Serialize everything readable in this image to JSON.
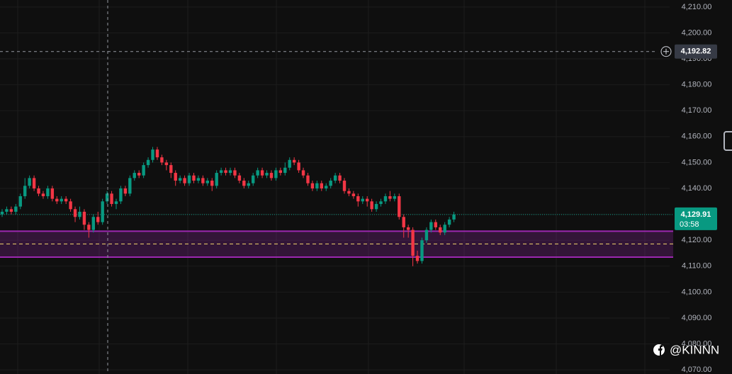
{
  "chart_data": {
    "type": "candlestick",
    "open": [
      4130,
      4131,
      4132,
      4131,
      4133,
      4137,
      4141,
      4144,
      4140,
      4138,
      4137,
      4140,
      4136,
      4135,
      4136,
      4135,
      4132,
      4129,
      4131,
      4126,
      4124,
      4129,
      4127,
      4135,
      4138,
      4134,
      4135,
      4140,
      4138,
      4144,
      4146,
      4145,
      4149,
      4151,
      4155,
      4152,
      4150,
      4149,
      4146,
      4143,
      4144,
      4142,
      4145,
      4143,
      4144,
      4142,
      4143,
      4141,
      4146,
      4147,
      4146,
      4147,
      4145,
      4143,
      4141,
      4142,
      4145,
      4147,
      4145,
      4146,
      4144,
      4147,
      4146,
      4148,
      4151,
      4150,
      4147,
      4145,
      4142,
      4140,
      4142,
      4140,
      4141,
      4143,
      4145,
      4143,
      4139,
      4138,
      4137,
      4135,
      4136,
      4135,
      4132,
      4134,
      4135,
      4137,
      4136,
      4137,
      4129,
      4125,
      4124,
      4114,
      4112,
      4120,
      4124,
      4127,
      4125,
      4123,
      4126,
      4128
    ],
    "high": [
      4132,
      4133,
      4133,
      4134,
      4138,
      4144,
      4145,
      4145,
      4141,
      4139,
      4141,
      4141,
      4137,
      4137,
      4137,
      4136,
      4133,
      4133,
      4132,
      4127,
      4130,
      4131,
      4136,
      4139,
      4139,
      4136,
      4141,
      4141,
      4145,
      4147,
      4147,
      4150,
      4152,
      4156,
      4156,
      4153,
      4151,
      4150,
      4147,
      4145,
      4145,
      4146,
      4146,
      4145,
      4145,
      4144,
      4144,
      4147,
      4148,
      4148,
      4148,
      4148,
      4146,
      4144,
      4143,
      4146,
      4148,
      4148,
      4147,
      4147,
      4148,
      4148,
      4150,
      4152,
      4152,
      4151,
      4148,
      4146,
      4143,
      4143,
      4143,
      4142,
      4144,
      4146,
      4146,
      4144,
      4140,
      4139,
      4138,
      4137,
      4137,
      4136,
      4135,
      4136,
      4138,
      4139,
      4138,
      4138,
      4130,
      4126,
      4125,
      4116,
      4121,
      4125,
      4128,
      4128,
      4126,
      4127,
      4129,
      4131
    ],
    "low": [
      4129,
      4130,
      4130,
      4130,
      4132,
      4136,
      4140,
      4139,
      4137,
      4136,
      4136,
      4135,
      4134,
      4134,
      4134,
      4131,
      4127,
      4128,
      4124,
      4121,
      4123,
      4126,
      4126,
      4134,
      4133,
      4132,
      4134,
      4137,
      4137,
      4143,
      4144,
      4144,
      4148,
      4150,
      4151,
      4149,
      4147,
      4144,
      4141,
      4142,
      4141,
      4141,
      4142,
      4142,
      4141,
      4141,
      4139,
      4140,
      4145,
      4145,
      4145,
      4144,
      4142,
      4140,
      4140,
      4141,
      4144,
      4144,
      4144,
      4143,
      4143,
      4145,
      4145,
      4147,
      4149,
      4146,
      4144,
      4141,
      4139,
      4139,
      4139,
      4139,
      4140,
      4142,
      4142,
      4138,
      4137,
      4136,
      4133,
      4134,
      4133,
      4131,
      4131,
      4133,
      4134,
      4135,
      4135,
      4128,
      4121,
      4121,
      4110,
      4111,
      4111,
      4119,
      4123,
      4124,
      4122,
      4122,
      4125,
      4127
    ],
    "close": [
      4131,
      4132,
      4131,
      4133,
      4137,
      4141,
      4144,
      4140,
      4138,
      4137,
      4140,
      4136,
      4135,
      4136,
      4135,
      4132,
      4129,
      4131,
      4126,
      4124,
      4129,
      4127,
      4135,
      4138,
      4134,
      4135,
      4140,
      4138,
      4144,
      4146,
      4145,
      4149,
      4151,
      4155,
      4152,
      4150,
      4149,
      4146,
      4143,
      4144,
      4142,
      4145,
      4143,
      4144,
      4142,
      4143,
      4141,
      4146,
      4147,
      4146,
      4147,
      4145,
      4143,
      4141,
      4142,
      4145,
      4147,
      4145,
      4146,
      4144,
      4147,
      4146,
      4148,
      4151,
      4150,
      4147,
      4145,
      4142,
      4140,
      4142,
      4140,
      4141,
      4143,
      4145,
      4143,
      4139,
      4138,
      4137,
      4135,
      4136,
      4135,
      4132,
      4134,
      4135,
      4137,
      4136,
      4137,
      4129,
      4125,
      4124,
      4114,
      4112,
      4120,
      4124,
      4127,
      4125,
      4123,
      4126,
      4128,
      4129.91
    ],
    "up_color": "#089981",
    "down_color": "#f23645",
    "ylim": [
      4068.4,
      4212.7
    ],
    "yticks": [
      {
        "value": 4210,
        "label": "4,210.00"
      },
      {
        "value": 4200,
        "label": "4,200.00"
      },
      {
        "value": 4190,
        "label": "4,190.00"
      },
      {
        "value": 4180,
        "label": "4,180.00"
      },
      {
        "value": 4170,
        "label": "4,170.00"
      },
      {
        "value": 4160,
        "label": "4,160.00"
      },
      {
        "value": 4150,
        "label": "4,150.00"
      },
      {
        "value": 4140,
        "label": "4,140.00"
      },
      {
        "value": 4130,
        "label": "4,130.00"
      },
      {
        "value": 4120,
        "label": "4,120.00"
      },
      {
        "value": 4110,
        "label": "4,110.00"
      },
      {
        "value": 4100,
        "label": "4,100.00"
      },
      {
        "value": 4090,
        "label": "4,090.00"
      },
      {
        "value": 4080,
        "label": "4,080.00"
      },
      {
        "value": 4070,
        "label": "4,070.00"
      }
    ],
    "grid": true,
    "crosshair": {
      "value": 4192.82,
      "label": "4,192.82"
    },
    "last_price": {
      "value": 4129.91,
      "label": "4,129.91"
    },
    "countdown": "03:58",
    "zone": {
      "top": 4123.5,
      "mid": 4118.6,
      "bottom": 4113.5,
      "color": "#9c27b0"
    },
    "watermark": "@KINNN"
  }
}
